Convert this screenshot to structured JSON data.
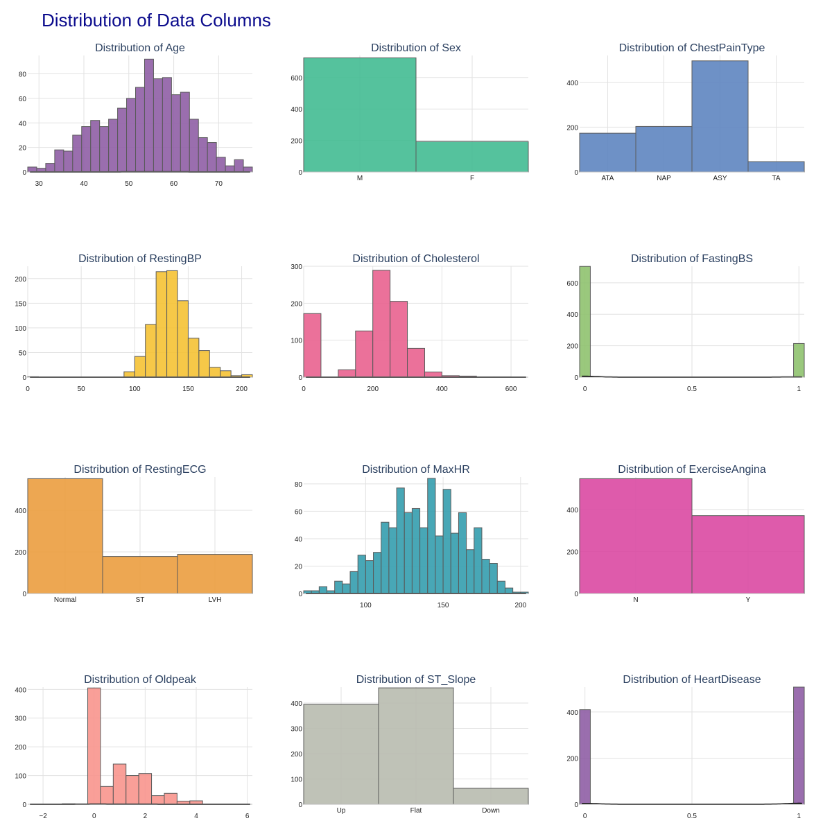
{
  "page": {
    "title": "Distribution of Data Columns"
  },
  "chart_data": [
    {
      "id": "age",
      "type": "histogram",
      "title": "Distribution of Age",
      "color": "#8c5aa3",
      "xmin": 27.5,
      "xmax": 77.5,
      "ymax": 95,
      "bin_width": 2,
      "bins": [
        [
          27.5,
          4
        ],
        [
          29.5,
          3
        ],
        [
          31.5,
          7
        ],
        [
          33.5,
          18
        ],
        [
          35.5,
          17
        ],
        [
          37.5,
          30
        ],
        [
          39.5,
          37
        ],
        [
          41.5,
          42
        ],
        [
          43.5,
          37
        ],
        [
          45.5,
          43
        ],
        [
          47.5,
          52
        ],
        [
          49.5,
          60
        ],
        [
          51.5,
          69
        ],
        [
          53.5,
          92
        ],
        [
          55.5,
          76
        ],
        [
          57.5,
          77
        ],
        [
          59.5,
          63
        ],
        [
          61.5,
          65
        ],
        [
          63.5,
          43
        ],
        [
          65.5,
          28
        ],
        [
          67.5,
          24
        ],
        [
          69.5,
          12
        ],
        [
          71.5,
          5
        ],
        [
          73.5,
          10
        ],
        [
          75.5,
          4
        ]
      ],
      "xticks": [
        30,
        40,
        50,
        60,
        70
      ],
      "xtick_labels": [
        "30",
        "40",
        "50",
        "60",
        "70"
      ],
      "yticks": [
        0,
        20,
        40,
        60,
        80
      ],
      "ytick_labels": [
        "0",
        "20",
        "40",
        "60",
        "80"
      ],
      "kde": true
    },
    {
      "id": "sex",
      "type": "bar",
      "title": "Distribution of Sex",
      "color": "#3dba8f",
      "categories": [
        "M",
        "F"
      ],
      "values": [
        725,
        193
      ],
      "ymax": 740,
      "yticks": [
        0,
        200,
        400,
        600
      ],
      "ytick_labels": [
        "0",
        "200",
        "400",
        "600"
      ]
    },
    {
      "id": "chestpain",
      "type": "bar",
      "title": "Distribution of ChestPainType",
      "color": "#5a82be",
      "categories": [
        "ATA",
        "NAP",
        "ASY",
        "TA"
      ],
      "values": [
        173,
        203,
        496,
        46
      ],
      "ymax": 520,
      "yticks": [
        0,
        200,
        400
      ],
      "ytick_labels": [
        "0",
        "200",
        "400"
      ]
    },
    {
      "id": "restingbp",
      "type": "histogram",
      "title": "Distribution of RestingBP",
      "color": "#f5c02f",
      "xmin": 0,
      "xmax": 210,
      "ymax": 225,
      "bin_width": 10,
      "bins": [
        [
          0,
          1
        ],
        [
          90,
          11
        ],
        [
          100,
          42
        ],
        [
          110,
          107
        ],
        [
          120,
          214
        ],
        [
          130,
          216
        ],
        [
          140,
          155
        ],
        [
          150,
          79
        ],
        [
          160,
          54
        ],
        [
          170,
          20
        ],
        [
          180,
          13
        ],
        [
          190,
          3
        ],
        [
          200,
          5
        ]
      ],
      "xticks": [
        0,
        50,
        100,
        150,
        200
      ],
      "xtick_labels": [
        "0",
        "50",
        "100",
        "150",
        "200"
      ],
      "yticks": [
        0,
        50,
        100,
        150,
        200
      ],
      "ytick_labels": [
        "0",
        "50",
        "100",
        "150",
        "200"
      ],
      "kde": true
    },
    {
      "id": "cholesterol",
      "type": "histogram",
      "title": "Distribution of Cholesterol",
      "color": "#e85d8c",
      "xmin": 0,
      "xmax": 650,
      "ymax": 300,
      "bin_width": 50,
      "bins": [
        [
          0,
          172
        ],
        [
          100,
          20
        ],
        [
          150,
          125
        ],
        [
          200,
          289
        ],
        [
          250,
          205
        ],
        [
          300,
          78
        ],
        [
          350,
          14
        ],
        [
          400,
          4
        ],
        [
          450,
          3
        ],
        [
          500,
          1
        ],
        [
          550,
          1
        ]
      ],
      "xticks": [
        0,
        200,
        400,
        600
      ],
      "xtick_labels": [
        "0",
        "200",
        "400",
        "600"
      ],
      "yticks": [
        0,
        100,
        200,
        300
      ],
      "ytick_labels": [
        "0",
        "100",
        "200",
        "300"
      ],
      "kde": true
    },
    {
      "id": "fastingbs",
      "type": "histogram",
      "title": "Distribution of FastingBS",
      "color": "#8cc06b",
      "xmin": -0.025,
      "xmax": 1.025,
      "ymax": 705,
      "bin_width": 0.05,
      "bins": [
        [
          -0.025,
          704
        ],
        [
          0.975,
          214
        ]
      ],
      "xticks": [
        0,
        0.5,
        1
      ],
      "xtick_labels": [
        "0",
        "0.5",
        "1"
      ],
      "yticks": [
        0,
        200,
        400,
        600
      ],
      "ytick_labels": [
        "0",
        "200",
        "400",
        "600"
      ],
      "kde": true
    },
    {
      "id": "restingecg",
      "type": "bar",
      "title": "Distribution of RestingECG",
      "color": "#eb9b3a",
      "categories": [
        "Normal",
        "ST",
        "LVH"
      ],
      "values": [
        552,
        178,
        188
      ],
      "ymax": 560,
      "yticks": [
        0,
        200,
        400
      ],
      "ytick_labels": [
        "0",
        "200",
        "400"
      ]
    },
    {
      "id": "maxhr",
      "type": "histogram",
      "title": "Distribution of MaxHR",
      "color": "#2f9bac",
      "xmin": 60,
      "xmax": 205,
      "ymax": 85,
      "bin_width": 5,
      "bins": [
        [
          60,
          2
        ],
        [
          65,
          2
        ],
        [
          70,
          5
        ],
        [
          75,
          2
        ],
        [
          80,
          9
        ],
        [
          85,
          7
        ],
        [
          90,
          16
        ],
        [
          95,
          28
        ],
        [
          100,
          24
        ],
        [
          105,
          30
        ],
        [
          110,
          52
        ],
        [
          115,
          48
        ],
        [
          120,
          77
        ],
        [
          125,
          59
        ],
        [
          130,
          62
        ],
        [
          135,
          48
        ],
        [
          140,
          84
        ],
        [
          145,
          42
        ],
        [
          150,
          76
        ],
        [
          155,
          44
        ],
        [
          160,
          59
        ],
        [
          165,
          32
        ],
        [
          170,
          48
        ],
        [
          175,
          25
        ],
        [
          180,
          22
        ],
        [
          185,
          9
        ],
        [
          190,
          4
        ],
        [
          195,
          1
        ],
        [
          200,
          1
        ]
      ],
      "xticks": [
        100,
        150,
        200
      ],
      "xtick_labels": [
        "100",
        "150",
        "200"
      ],
      "yticks": [
        0,
        20,
        40,
        60,
        80
      ],
      "ytick_labels": [
        "0",
        "20",
        "40",
        "60",
        "80"
      ],
      "kde": true
    },
    {
      "id": "exerciseangina",
      "type": "bar",
      "title": "Distribution of ExerciseAngina",
      "color": "#d9449f",
      "categories": [
        "N",
        "Y"
      ],
      "values": [
        547,
        371
      ],
      "ymax": 555,
      "yticks": [
        0,
        200,
        400
      ],
      "ytick_labels": [
        "0",
        "200",
        "400"
      ]
    },
    {
      "id": "oldpeak",
      "type": "histogram",
      "title": "Distribution of Oldpeak",
      "color": "#f8928a",
      "xmin": -2.6,
      "xmax": 6.2,
      "ymax": 408,
      "bin_width": 0.5,
      "bins": [
        [
          -1.25,
          2
        ],
        [
          -0.25,
          405
        ],
        [
          0.25,
          62
        ],
        [
          0.75,
          140
        ],
        [
          1.25,
          100
        ],
        [
          1.75,
          107
        ],
        [
          2.25,
          30
        ],
        [
          2.75,
          38
        ],
        [
          3.25,
          11
        ],
        [
          3.75,
          12
        ]
      ],
      "xticks": [
        -2,
        0,
        2,
        4,
        6
      ],
      "xtick_labels": [
        "−2",
        "0",
        "2",
        "4",
        "6"
      ],
      "yticks": [
        0,
        100,
        200,
        300,
        400
      ],
      "ytick_labels": [
        "0",
        "100",
        "200",
        "300",
        "400"
      ],
      "kde": true
    },
    {
      "id": "stslope",
      "type": "bar",
      "title": "Distribution of ST_Slope",
      "color": "#b6b9ad",
      "categories": [
        "Up",
        "Flat",
        "Down"
      ],
      "values": [
        395,
        460,
        63
      ],
      "ymax": 463,
      "yticks": [
        0,
        100,
        200,
        300,
        400
      ],
      "ytick_labels": [
        "0",
        "100",
        "200",
        "300",
        "400"
      ]
    },
    {
      "id": "heartdisease",
      "type": "histogram",
      "title": "Distribution of HeartDisease",
      "color": "#8c5aa3",
      "xmin": -0.025,
      "xmax": 1.025,
      "ymax": 508,
      "bin_width": 0.05,
      "bins": [
        [
          -0.025,
          410
        ],
        [
          0.975,
          508
        ]
      ],
      "xticks": [
        0,
        0.5,
        1
      ],
      "xtick_labels": [
        "0",
        "0.5",
        "1"
      ],
      "yticks": [
        0,
        200,
        400
      ],
      "ytick_labels": [
        "0",
        "200",
        "400"
      ],
      "kde": true
    }
  ]
}
